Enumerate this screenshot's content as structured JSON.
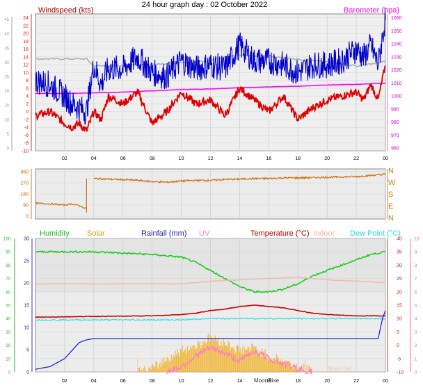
{
  "title": "24 hour graph day : 02 October 2022",
  "colors": {
    "wind": "#e00000",
    "windLabel": "#b00000",
    "gust": "#0000cc",
    "baro": "#ff00ff",
    "grey": "#b0b0b0",
    "dir": "#d07010",
    "humidity": "#22cc22",
    "solar": "#f2b020",
    "rain": "#2222dd",
    "uv": "#ff77cc",
    "temp": "#cc0000",
    "indoor": "#f4b8a0",
    "dew": "#22e6ee",
    "axisRed": "#cc3333",
    "axisPink": "#ff66aa",
    "axisGreen": "#22bb22",
    "axisBlue": "#3333cc"
  },
  "chart_data": [
    {
      "type": "line",
      "labels": {
        "left": "Windspeed (kts)",
        "right": "Barometer (hpa)"
      },
      "x_ticks": [
        "02",
        "04",
        "06",
        "08",
        "10",
        "12",
        "14",
        "16",
        "18",
        "20",
        "22",
        "00"
      ],
      "y_left_ticks": [
        "-10",
        "-8",
        "-6",
        "-4",
        "-2",
        "0",
        "2",
        "4",
        "6",
        "8",
        "10",
        "12",
        "14",
        "16",
        "18",
        "20",
        "22",
        "24"
      ],
      "y_left_grey_ticks": [
        "0",
        "5",
        "10",
        "15",
        "20",
        "25",
        "30",
        "35",
        "40",
        "45"
      ],
      "y_right_ticks": [
        "960",
        "970",
        "980",
        "990",
        "1000",
        "1010",
        "1020",
        "1030",
        "1040",
        "1050",
        "1060"
      ],
      "ylim_left": [
        -10,
        25
      ],
      "ylim_right": [
        958,
        1063
      ],
      "series": [
        {
          "key": "barometer",
          "kind": "baro",
          "x": [
            0,
            2,
            4,
            6,
            8,
            10,
            12,
            14,
            16,
            18,
            20,
            22,
            24
          ],
          "y": [
            1002,
            1002,
            1002.5,
            1003,
            1004,
            1005,
            1005.5,
            1006.5,
            1007,
            1007.5,
            1008.5,
            1009,
            1010
          ]
        },
        {
          "key": "grey",
          "kind": "grey",
          "x": [
            0,
            2,
            3.5,
            4,
            6,
            8,
            10,
            12,
            13,
            14,
            15,
            16,
            18,
            20,
            22,
            23,
            24
          ],
          "y": [
            13.5,
            13.5,
            13.5,
            11.7,
            11.7,
            12.2,
            12.5,
            13.1,
            14.2,
            14.4,
            14.3,
            14.3,
            13.3,
            12.9,
            11.7,
            12.3,
            12.8
          ]
        },
        {
          "key": "wind",
          "kind": "wind",
          "x": [
            0,
            1,
            2,
            2.5,
            3,
            3.5,
            4,
            4.5,
            5,
            6,
            7,
            8,
            9,
            10,
            11,
            12,
            13,
            14,
            15,
            16,
            17,
            18,
            19,
            20,
            21,
            22,
            22.5,
            23,
            23.5,
            24
          ],
          "y": [
            -1,
            0,
            -3,
            -4,
            -3,
            -5,
            0,
            -2,
            4,
            2,
            5,
            -3,
            0,
            5,
            2,
            3,
            -1,
            6,
            3,
            0,
            4,
            -2,
            1,
            3,
            4,
            5,
            3,
            7,
            3,
            12
          ]
        },
        {
          "key": "gust",
          "kind": "gust",
          "x": [
            0,
            1,
            2,
            2.5,
            3,
            3.5,
            4,
            4.5,
            5,
            6,
            7,
            8,
            9,
            10,
            11,
            12,
            13,
            14,
            15,
            16,
            17,
            18,
            19,
            20,
            21,
            22,
            22.5,
            23,
            23.5,
            24
          ],
          "y": [
            8,
            7,
            4,
            2,
            1,
            0,
            12,
            7,
            11,
            11,
            14,
            10,
            9,
            13,
            11,
            12,
            11,
            17,
            13,
            13,
            12,
            10,
            12,
            12,
            13,
            16,
            14,
            17,
            12,
            24
          ]
        }
      ]
    },
    {
      "type": "line",
      "labels": {
        "left": "",
        "right": ""
      },
      "x_ticks": [
        "02",
        "04",
        "06",
        "08",
        "10",
        "12",
        "14",
        "16",
        "18",
        "20",
        "22",
        "00"
      ],
      "y_left_ticks": [
        "0",
        "90",
        "180",
        "270",
        "360"
      ],
      "y_right_ticks": [
        "N",
        "E",
        "S",
        "W",
        "N"
      ],
      "ylim": [
        0,
        360
      ],
      "series": [
        {
          "key": "direction",
          "kind": "dir",
          "x": [
            0,
            1,
            2,
            2.5,
            3,
            3.5,
            3.6,
            4,
            5,
            6,
            7,
            8,
            9,
            10,
            11,
            12,
            13,
            14,
            15,
            16,
            17,
            18,
            19,
            20,
            21,
            22,
            23,
            24
          ],
          "y": [
            105,
            100,
            90,
            100,
            85,
            60,
            30,
            305,
            300,
            295,
            290,
            280,
            275,
            285,
            290,
            290,
            298,
            300,
            305,
            305,
            310,
            310,
            312,
            315,
            318,
            320,
            330,
            340
          ]
        }
      ]
    },
    {
      "type": "line",
      "labels": {
        "humidity": "Humidity",
        "solar": "Solar",
        "rain": "Rainfall (mm)",
        "uv": "UV",
        "temp": "Temperature (°C)",
        "indoor": "Indoor",
        "dew": "Dew Point (°C)"
      },
      "x_ticks": [
        "02",
        "04",
        "06",
        "08",
        "10",
        "12",
        "14",
        "16",
        "18",
        "20",
        "22",
        "00"
      ],
      "y_hum_ticks": [
        "0",
        "10",
        "20",
        "30",
        "40",
        "50",
        "60",
        "70",
        "80",
        "90",
        "100"
      ],
      "y_rain_ticks": [
        "0",
        "5",
        "10",
        "15",
        "20",
        "25",
        "30"
      ],
      "y_temp_ticks": [
        "-10",
        "-5",
        "0",
        "5",
        "10",
        "15",
        "20",
        "25",
        "30",
        "35",
        "40"
      ],
      "y_uv_ticks": [
        "0",
        "1",
        "2",
        "3",
        "4",
        "5",
        "6",
        "7",
        "8",
        "9",
        "10"
      ],
      "ylim_temp": [
        -10,
        40
      ],
      "annotations": [
        "MoonRise",
        "Moon Set"
      ],
      "series": [
        {
          "key": "humidity",
          "kind": "humidity",
          "x": [
            0,
            2,
            4,
            6,
            8,
            10,
            11,
            12,
            13,
            14,
            15,
            16,
            17,
            18,
            19,
            20,
            21,
            22,
            23,
            24
          ],
          "y": [
            35,
            35,
            35,
            34.5,
            34,
            33,
            31,
            28,
            25,
            22,
            20,
            20,
            21,
            23,
            26,
            28,
            30,
            32,
            34,
            35
          ]
        },
        {
          "key": "indoor",
          "kind": "indoor",
          "x": [
            0,
            4,
            8,
            10,
            12,
            14,
            16,
            18,
            20,
            22,
            24
          ],
          "y": [
            23,
            23,
            23,
            23,
            24,
            24.5,
            25,
            25.5,
            24.5,
            24,
            23.5
          ]
        },
        {
          "key": "temperature",
          "kind": "temp",
          "x": [
            0,
            4,
            8,
            10,
            11,
            12,
            13,
            14,
            15,
            16,
            17,
            18,
            19,
            20,
            22,
            24
          ],
          "y": [
            10.5,
            10.8,
            11,
            11.5,
            12,
            13,
            13.5,
            14.5,
            15,
            14.5,
            14,
            13,
            12,
            11.5,
            11,
            11
          ]
        },
        {
          "key": "dew",
          "kind": "dew",
          "x": [
            0,
            4,
            8,
            10,
            12,
            14,
            16,
            18,
            20,
            22,
            24
          ],
          "y": [
            9.5,
            9.5,
            9.5,
            9.5,
            10,
            10,
            10,
            10,
            10,
            10,
            10
          ]
        },
        {
          "key": "solar",
          "kind": "solar",
          "x": [
            7,
            8,
            9,
            10,
            11,
            12,
            13,
            14,
            15,
            16,
            17,
            18,
            19
          ],
          "y": [
            -10,
            -9,
            -5,
            -2,
            0,
            3,
            1,
            -2,
            -1,
            -4,
            -6,
            -8,
            -10
          ]
        },
        {
          "key": "uv",
          "kind": "uv",
          "x": [
            9,
            10,
            11,
            12,
            13,
            14,
            15,
            16,
            17,
            18,
            19
          ],
          "y": [
            -10,
            -8,
            -4,
            -1,
            -3,
            -6,
            -2,
            -5,
            -7,
            -9,
            -10
          ]
        },
        {
          "key": "rainfall",
          "kind": "rain",
          "x": [
            0,
            1,
            2,
            3,
            3.5,
            4,
            6,
            8,
            10,
            12,
            14,
            16,
            18,
            20,
            22,
            23.5,
            23.8,
            24
          ],
          "y": [
            -9,
            -8,
            -5,
            1,
            2,
            2.5,
            2.5,
            2.5,
            2.5,
            2.5,
            2.5,
            2.5,
            2.5,
            2.5,
            2.5,
            2.5,
            10,
            13
          ]
        }
      ]
    }
  ]
}
